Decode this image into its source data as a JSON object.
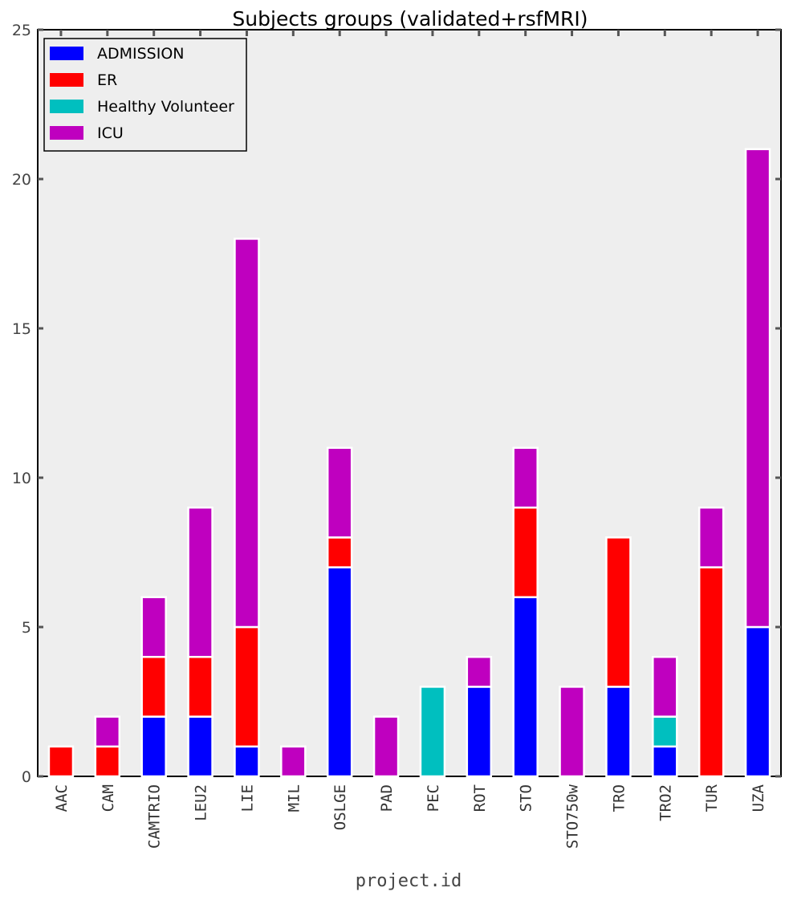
{
  "chart_data": {
    "type": "bar",
    "stacked": true,
    "title": "Subjects groups (validated+rsfMRI)",
    "xlabel": "project.id",
    "ylabel": "",
    "ylim": [
      0,
      25
    ],
    "yticks": [
      0,
      5,
      10,
      15,
      20,
      25
    ],
    "grid": false,
    "legend_position": "top-left",
    "categories": [
      "AAC",
      "CAM",
      "CAMTRIO",
      "LEU2",
      "LIE",
      "MIL",
      "OSLGE",
      "PAD",
      "PEC",
      "ROT",
      "STO",
      "STO750w",
      "TRO",
      "TRO2",
      "TUR",
      "UZA"
    ],
    "series": [
      {
        "name": "ADMISSION",
        "color": "#0000ff",
        "values": [
          0,
          0,
          2,
          2,
          1,
          0,
          7,
          0,
          0,
          3,
          6,
          0,
          3,
          1,
          0,
          5
        ]
      },
      {
        "name": "ER",
        "color": "#ff0000",
        "values": [
          1,
          1,
          2,
          2,
          4,
          0,
          1,
          0,
          0,
          0,
          3,
          0,
          5,
          0,
          7,
          0
        ]
      },
      {
        "name": "Healthy Volunteer",
        "color": "#00bfbf",
        "values": [
          0,
          0,
          0,
          0,
          0,
          0,
          0,
          0,
          3,
          0,
          0,
          0,
          0,
          1,
          0,
          0
        ]
      },
      {
        "name": "ICU",
        "color": "#bf00bf",
        "values": [
          0,
          1,
          2,
          5,
          13,
          1,
          3,
          2,
          0,
          1,
          2,
          3,
          0,
          2,
          2,
          16
        ]
      }
    ]
  }
}
